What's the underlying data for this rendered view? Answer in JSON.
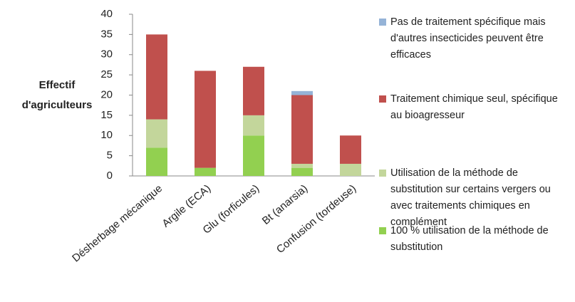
{
  "chart_data": {
    "type": "stacked-bar",
    "y_label": "Effectif d'agriculteurs",
    "categories": [
      "Désherbage mécanique",
      "Argile (ECA)",
      "Glu (forficules)",
      "Bt (anarsia)",
      "Confusion (tordeuse)"
    ],
    "series": [
      {
        "name": "100 % utilisation de la méthode de substitution",
        "color": "#92d050",
        "values": [
          7,
          2,
          10,
          2,
          0
        ]
      },
      {
        "name": "Utilisation de la méthode de substitution sur certains vergers ou avec traitements chimiques en complément",
        "color": "#c3d69b",
        "values": [
          7,
          0,
          5,
          1,
          3
        ]
      },
      {
        "name": "Traitement chimique seul, spécifique au bioagresseur",
        "color": "#c0504d",
        "values": [
          21,
          24,
          12,
          17,
          7
        ]
      },
      {
        "name": "Pas de traitement spécifique mais d'autres insecticides peuvent être efficaces",
        "color": "#95b3d7",
        "values": [
          0,
          0,
          0,
          1,
          0
        ]
      }
    ],
    "ylim": [
      0,
      40
    ],
    "yticks": [
      0,
      5,
      10,
      15,
      20,
      25,
      30,
      35,
      40
    ],
    "legend": "right"
  }
}
